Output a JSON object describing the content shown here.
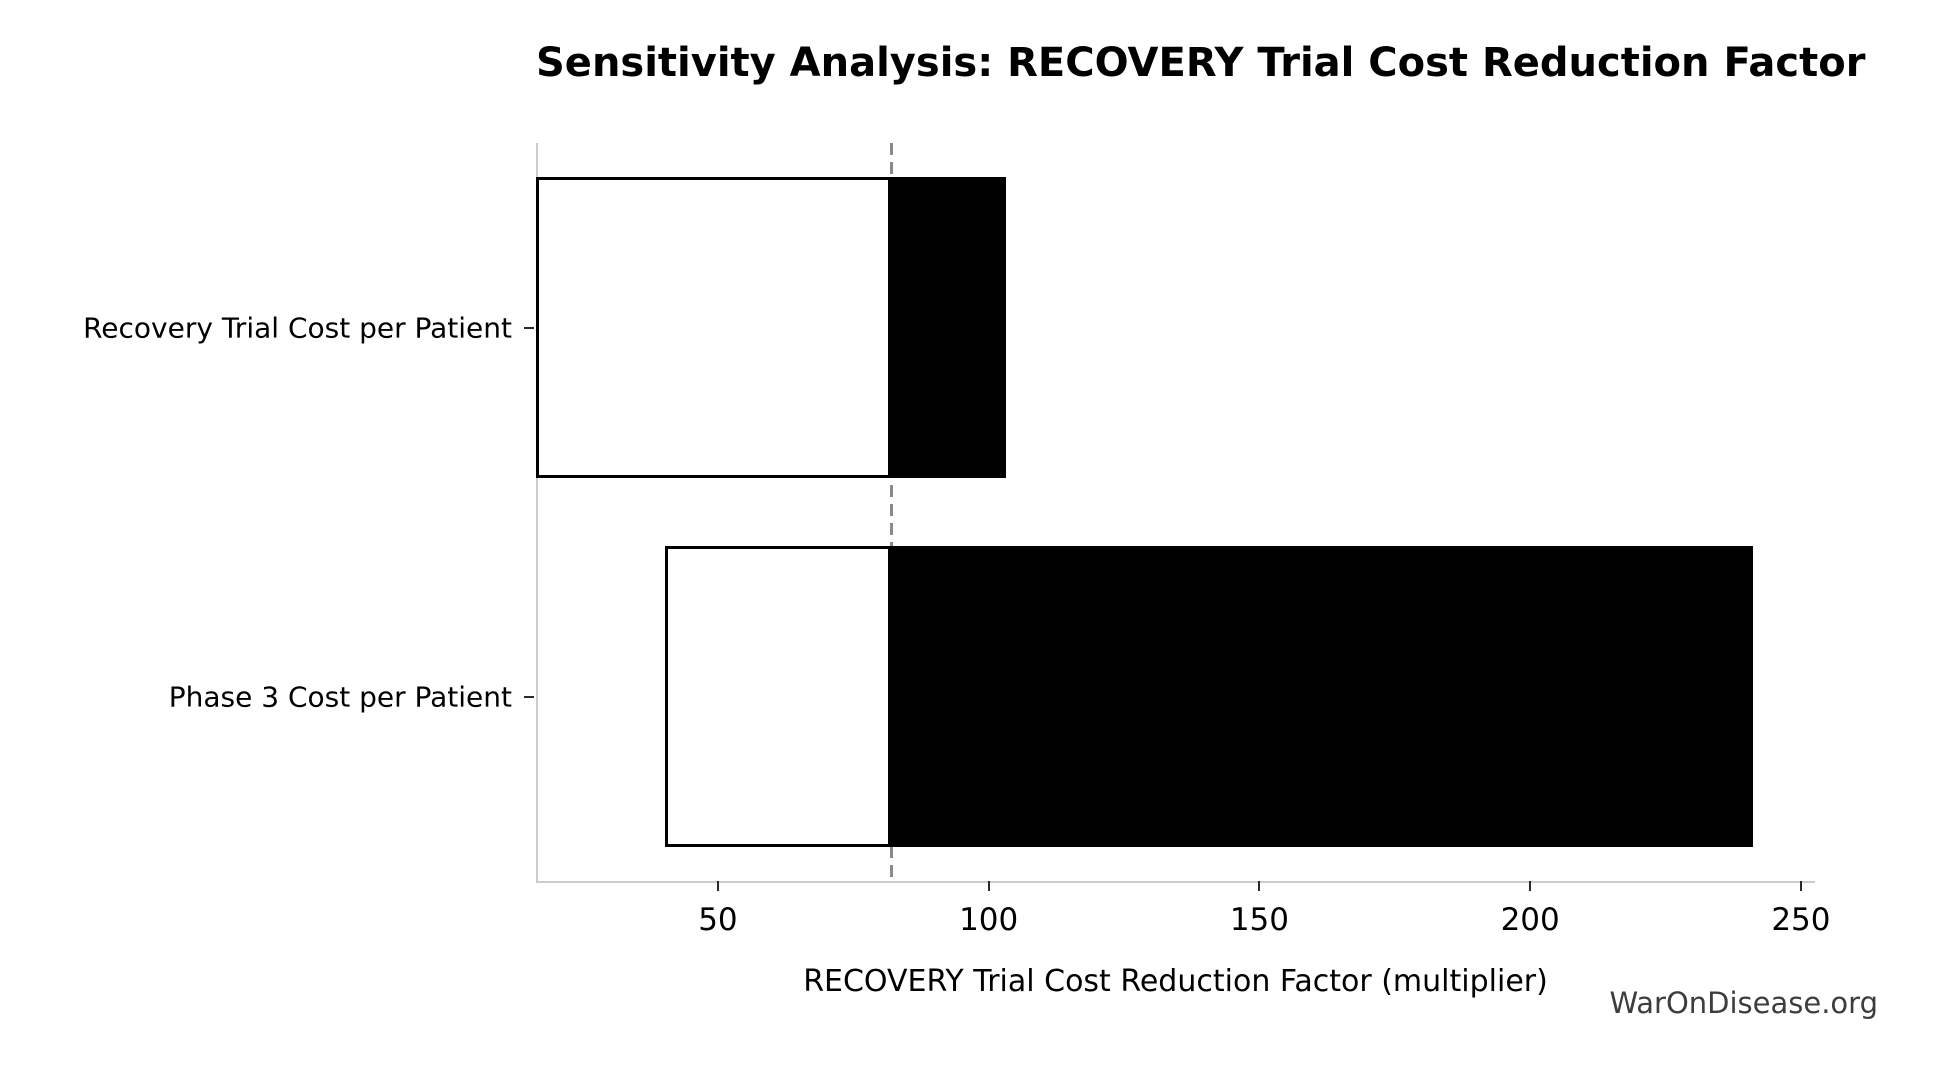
{
  "watermark": "WarOnDisease.org",
  "chart_data": {
    "type": "bar",
    "subtype": "tornado-sensitivity",
    "orientation": "horizontal",
    "title": "Sensitivity Analysis: RECOVERY Trial Cost Reduction Factor",
    "xlabel": "RECOVERY Trial Cost Reduction Factor (multiplier)",
    "ylabel": "",
    "categories": [
      "Recovery Trial Cost per Patient",
      "Phase 3 Cost per Patient"
    ],
    "baseline": 82,
    "bars": [
      {
        "label": "Recovery Trial Cost per Patient",
        "low": 16.4,
        "high": 103.2
      },
      {
        "label": "Phase 3 Cost per Patient",
        "low": 40.2,
        "high": 241.2
      }
    ],
    "xticks": [
      50,
      100,
      150,
      200,
      250
    ],
    "xlim": [
      16.4,
      252.6
    ],
    "grid": false,
    "legend": false,
    "bar_height_fraction": 0.408,
    "colors": {
      "below_baseline_fill": "#ffffff",
      "above_baseline_fill": "#000000",
      "bar_edge": "#000000",
      "baseline_line": "#8a8a8a",
      "spine": "#cccccc",
      "text": "#000000",
      "watermark": "#3d3d3d"
    }
  }
}
